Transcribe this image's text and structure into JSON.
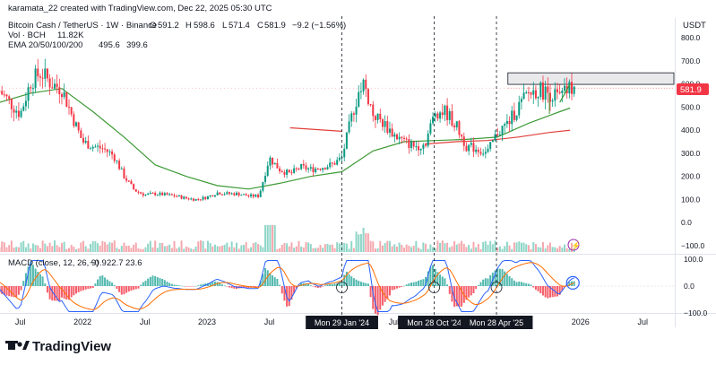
{
  "header": {
    "created_by": "karamata_22 created with TradingView.com, Dec 22, 2025 05:30 UTC",
    "symbol": "Bitcoin Cash / TetherUS · 1W · Binance",
    "ohlc": {
      "o_label": "O",
      "o": "591.2",
      "h_label": "H",
      "h": "598.6",
      "l_label": "L",
      "l": "571.4",
      "c_label": "C",
      "c": "581.9",
      "change": "−9.2 (−1.56%)"
    },
    "vol_label": "Vol · BCH",
    "vol_value": "11.82K",
    "ema_label": "EMA 20/50/100/200",
    "ema_v1": "495.6",
    "ema_v2": "399.6",
    "currency": "USDT",
    "price_tag": "581.9",
    "macd_label": "MACD (close, 12, 26, 9)",
    "macd_v1": "−0.9",
    "macd_v2": "22.7",
    "macd_v3": "23.6",
    "footer_brand": "TradingView"
  },
  "chart_data": {
    "type": "candlestick",
    "price_axis": {
      "ticks": [
        "800.0",
        "700.0",
        "600.0",
        "500.0",
        "400.0",
        "300.0",
        "200.0",
        "100.0",
        "0.0",
        "−100.0"
      ],
      "ylim": [
        -100,
        800
      ]
    },
    "macd_axis": {
      "ticks": [
        "100.0",
        "0.0",
        "−100.0"
      ],
      "ylim": [
        -100,
        100
      ]
    },
    "time_ticks": [
      "Jul",
      "2022",
      "Jul",
      "2023",
      "Jul",
      "Jul",
      "2026",
      "Jul"
    ],
    "date_markers": [
      "Mon 29 Jan '24",
      "Mon 28 Oct '24",
      "Mon 28 Apr '25"
    ],
    "resistance_zone": [
      598,
      648
    ],
    "current_price": 581.9,
    "price_path": [
      [
        "2021-05",
        570
      ],
      [
        "2021-06",
        520
      ],
      [
        "2021-07",
        470
      ],
      [
        "2021-08",
        610
      ],
      [
        "2021-09",
        650
      ],
      [
        "2021-10",
        600
      ],
      [
        "2021-11",
        580
      ],
      [
        "2021-12",
        460
      ],
      [
        "2022-01",
        350
      ],
      [
        "2022-02",
        330
      ],
      [
        "2022-03",
        320
      ],
      [
        "2022-04",
        290
      ],
      [
        "2022-05",
        200
      ],
      [
        "2022-06",
        140
      ],
      [
        "2022-07",
        120
      ],
      [
        "2022-08",
        125
      ],
      [
        "2022-09",
        120
      ],
      [
        "2022-10",
        115
      ],
      [
        "2022-11",
        105
      ],
      [
        "2022-12",
        100
      ],
      [
        "2023-01",
        110
      ],
      [
        "2023-02",
        130
      ],
      [
        "2023-03",
        125
      ],
      [
        "2023-04",
        125
      ],
      [
        "2023-05",
        115
      ],
      [
        "2023-06",
        115
      ],
      [
        "2023-07",
        280
      ],
      [
        "2023-08",
        230
      ],
      [
        "2023-09",
        210
      ],
      [
        "2023-10",
        240
      ],
      [
        "2023-11",
        230
      ],
      [
        "2023-12",
        240
      ],
      [
        "2024-01",
        250
      ],
      [
        "2024-02",
        280
      ],
      [
        "2024-03",
        470
      ],
      [
        "2024-04",
        620
      ],
      [
        "2024-05",
        470
      ],
      [
        "2024-06",
        430
      ],
      [
        "2024-07",
        380
      ],
      [
        "2024-08",
        350
      ],
      [
        "2024-09",
        330
      ],
      [
        "2024-10",
        340
      ],
      [
        "2024-11",
        480
      ],
      [
        "2024-12",
        480
      ],
      [
        "2025-01",
        420
      ],
      [
        "2025-02",
        330
      ],
      [
        "2025-03",
        320
      ],
      [
        "2025-04",
        300
      ],
      [
        "2025-05",
        390
      ],
      [
        "2025-06",
        430
      ],
      [
        "2025-07",
        500
      ],
      [
        "2025-08",
        560
      ],
      [
        "2025-09",
        575
      ],
      [
        "2025-10",
        560
      ],
      [
        "2025-11",
        540
      ],
      [
        "2025-12",
        582
      ]
    ],
    "ema_fast": [
      [
        "2021-05",
        520
      ],
      [
        "2021-08",
        560
      ],
      [
        "2021-11",
        580
      ],
      [
        "2022-02",
        480
      ],
      [
        "2022-05",
        370
      ],
      [
        "2022-08",
        250
      ],
      [
        "2022-11",
        200
      ],
      [
        "2023-02",
        160
      ],
      [
        "2023-05",
        145
      ],
      [
        "2023-08",
        170
      ],
      [
        "2023-11",
        200
      ],
      [
        "2024-02",
        220
      ],
      [
        "2024-05",
        310
      ],
      [
        "2024-08",
        350
      ],
      [
        "2024-11",
        355
      ],
      [
        "2025-02",
        360
      ],
      [
        "2025-05",
        370
      ],
      [
        "2025-08",
        430
      ],
      [
        "2025-11",
        480
      ],
      [
        "2025-12",
        495.6
      ]
    ],
    "ema_slow": [
      [
        "2024-10",
        340
      ],
      [
        "2025-01",
        350
      ],
      [
        "2025-04",
        355
      ],
      [
        "2025-07",
        370
      ],
      [
        "2025-10",
        390
      ],
      [
        "2025-12",
        399.6
      ]
    ]
  }
}
